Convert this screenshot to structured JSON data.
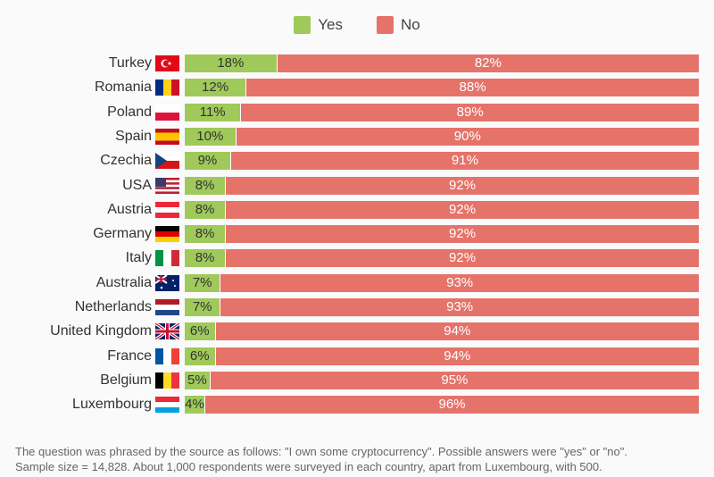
{
  "chart_data": {
    "type": "bar",
    "orientation": "horizontal",
    "stacked": true,
    "xlim": [
      0,
      100
    ],
    "categories": [
      "Turkey",
      "Romania",
      "Poland",
      "Spain",
      "Czechia",
      "USA",
      "Austria",
      "Germany",
      "Italy",
      "Australia",
      "Netherlands",
      "United Kingdom",
      "France",
      "Belgium",
      "Luxembourg"
    ],
    "flags": [
      "flag-turkey-icon",
      "flag-romania-icon",
      "flag-poland-icon",
      "flag-spain-icon",
      "flag-czechia-icon",
      "flag-usa-icon",
      "flag-austria-icon",
      "flag-germany-icon",
      "flag-italy-icon",
      "flag-australia-icon",
      "flag-netherlands-icon",
      "flag-uk-icon",
      "flag-france-icon",
      "flag-belgium-icon",
      "flag-luxembourg-icon"
    ],
    "series": [
      {
        "name": "Yes",
        "color": "#9fc95a",
        "values": [
          18,
          12,
          11,
          10,
          9,
          8,
          8,
          8,
          8,
          7,
          7,
          6,
          6,
          5,
          4
        ]
      },
      {
        "name": "No",
        "color": "#e5736a",
        "values": [
          82,
          88,
          89,
          90,
          91,
          92,
          92,
          92,
          92,
          93,
          93,
          94,
          94,
          95,
          96
        ]
      }
    ],
    "legend": "top-center",
    "data_label_suffix": "%"
  },
  "notes": [
    "The question was phrased by the source as follows: \"I own some cryptocurrency\". Possible answers were \"yes\" or \"no\".",
    "Sample size = 14,828. About 1,000 respondents were surveyed in each country, apart from Luxembourg, with 500."
  ]
}
